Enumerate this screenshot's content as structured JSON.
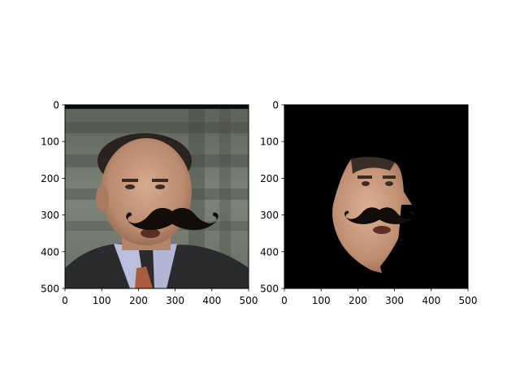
{
  "figure": {
    "background": "#ffffff"
  },
  "chart_data": [
    {
      "type": "image",
      "title": "",
      "xlabel": "",
      "ylabel": "",
      "xlim": [
        0,
        500
      ],
      "ylim": [
        500,
        0
      ],
      "xticks": [
        0,
        100,
        200,
        300,
        400,
        500
      ],
      "yticks": [
        0,
        100,
        200,
        300,
        400,
        500
      ],
      "grid": false,
      "image_content": "photo of a man in a suit with a black cartoon mustache overlay",
      "colors": {
        "frame": "#000000",
        "mustache": "#120c0a",
        "skin": "#c79a7e",
        "suit": "#2b2b2e"
      }
    },
    {
      "type": "image",
      "title": "",
      "xlabel": "",
      "ylabel": "",
      "xlim": [
        0,
        500
      ],
      "ylim": [
        500,
        0
      ],
      "xticks": [
        0,
        100,
        200,
        300,
        400,
        500
      ],
      "yticks": [
        0,
        100,
        200,
        300,
        400,
        500
      ],
      "grid": false,
      "image_content": "segmented face region on black background with mustache overlay",
      "colors": {
        "background": "#000000",
        "mustache": "#0b0807",
        "skin": "#c99b80"
      }
    }
  ]
}
